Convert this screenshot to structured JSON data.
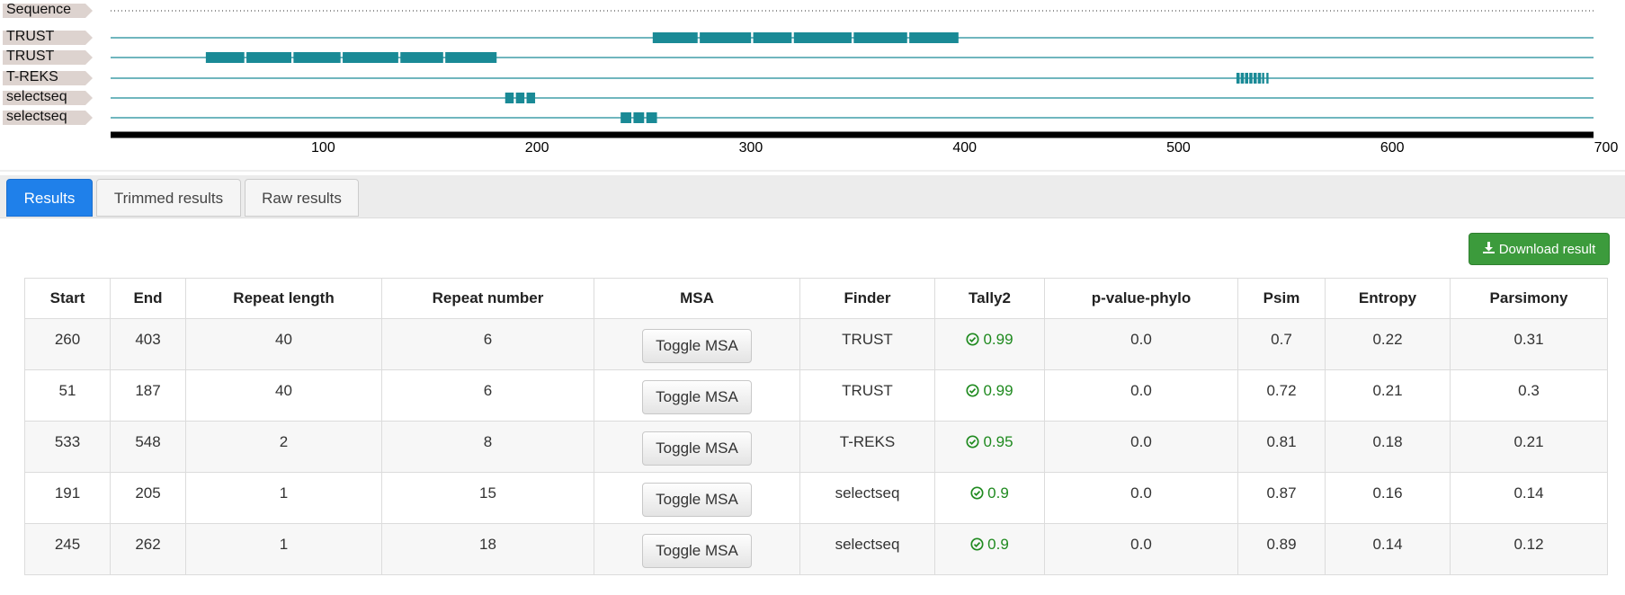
{
  "viewer": {
    "tracks": [
      {
        "label": "Sequence",
        "style": "dotted",
        "segments": []
      },
      {
        "label": "TRUST",
        "style": "line",
        "segments": [
          [
            260,
            281
          ],
          [
            282,
            306
          ],
          [
            307,
            325
          ],
          [
            326,
            353
          ],
          [
            354,
            379
          ],
          [
            380,
            403
          ]
        ]
      },
      {
        "label": "TRUST",
        "style": "line",
        "segments": [
          [
            51,
            69
          ],
          [
            70,
            91
          ],
          [
            92,
            114
          ],
          [
            115,
            141
          ],
          [
            142,
            162
          ],
          [
            163,
            187
          ]
        ]
      },
      {
        "label": "T-REKS",
        "style": "line",
        "segments": [
          [
            533,
            534.5
          ],
          [
            535,
            536.5
          ],
          [
            537,
            538.5
          ],
          [
            539,
            540.5
          ],
          [
            541,
            542.5
          ],
          [
            543,
            544.5
          ],
          [
            545,
            546
          ],
          [
            547,
            548
          ]
        ]
      },
      {
        "label": "selectseq",
        "style": "line",
        "segments": [
          [
            191,
            195
          ],
          [
            196,
            200
          ],
          [
            201,
            205
          ]
        ]
      },
      {
        "label": "selectseq",
        "style": "line",
        "segments": [
          [
            245,
            250
          ],
          [
            251,
            256
          ],
          [
            257,
            262
          ]
        ]
      }
    ],
    "axis": {
      "min": 1,
      "max": 700,
      "ticks": [
        100,
        200,
        300,
        400,
        500,
        600,
        700
      ]
    },
    "track_color": "#1a8a96",
    "label_color": "#ddd3cf"
  },
  "tabs": [
    {
      "label": "Results",
      "active": true
    },
    {
      "label": "Trimmed results",
      "active": false
    },
    {
      "label": "Raw results",
      "active": false
    }
  ],
  "download_label": "Download result",
  "table": {
    "headers": [
      "Start",
      "End",
      "Repeat length",
      "Repeat number",
      "MSA",
      "Finder",
      "Tally2",
      "p-value-phylo",
      "Psim",
      "Entropy",
      "Parsimony"
    ],
    "rows": [
      {
        "start": "260",
        "end": "403",
        "repeat_length": "40",
        "repeat_number": "6",
        "msa": "Toggle MSA",
        "finder": "TRUST",
        "tally2": "0.99",
        "pvalue": "0.0",
        "psim": "0.7",
        "entropy": "0.22",
        "parsimony": "0.31"
      },
      {
        "start": "51",
        "end": "187",
        "repeat_length": "40",
        "repeat_number": "6",
        "msa": "Toggle MSA",
        "finder": "TRUST",
        "tally2": "0.99",
        "pvalue": "0.0",
        "psim": "0.72",
        "entropy": "0.21",
        "parsimony": "0.3"
      },
      {
        "start": "533",
        "end": "548",
        "repeat_length": "2",
        "repeat_number": "8",
        "msa": "Toggle MSA",
        "finder": "T-REKS",
        "tally2": "0.95",
        "pvalue": "0.0",
        "psim": "0.81",
        "entropy": "0.18",
        "parsimony": "0.21"
      },
      {
        "start": "191",
        "end": "205",
        "repeat_length": "1",
        "repeat_number": "15",
        "msa": "Toggle MSA",
        "finder": "selectseq",
        "tally2": "0.9",
        "pvalue": "0.0",
        "psim": "0.87",
        "entropy": "0.16",
        "parsimony": "0.14"
      },
      {
        "start": "245",
        "end": "262",
        "repeat_length": "1",
        "repeat_number": "18",
        "msa": "Toggle MSA",
        "finder": "selectseq",
        "tally2": "0.9",
        "pvalue": "0.0",
        "psim": "0.89",
        "entropy": "0.14",
        "parsimony": "0.12"
      }
    ],
    "tally_color": "#1f8a1f"
  }
}
